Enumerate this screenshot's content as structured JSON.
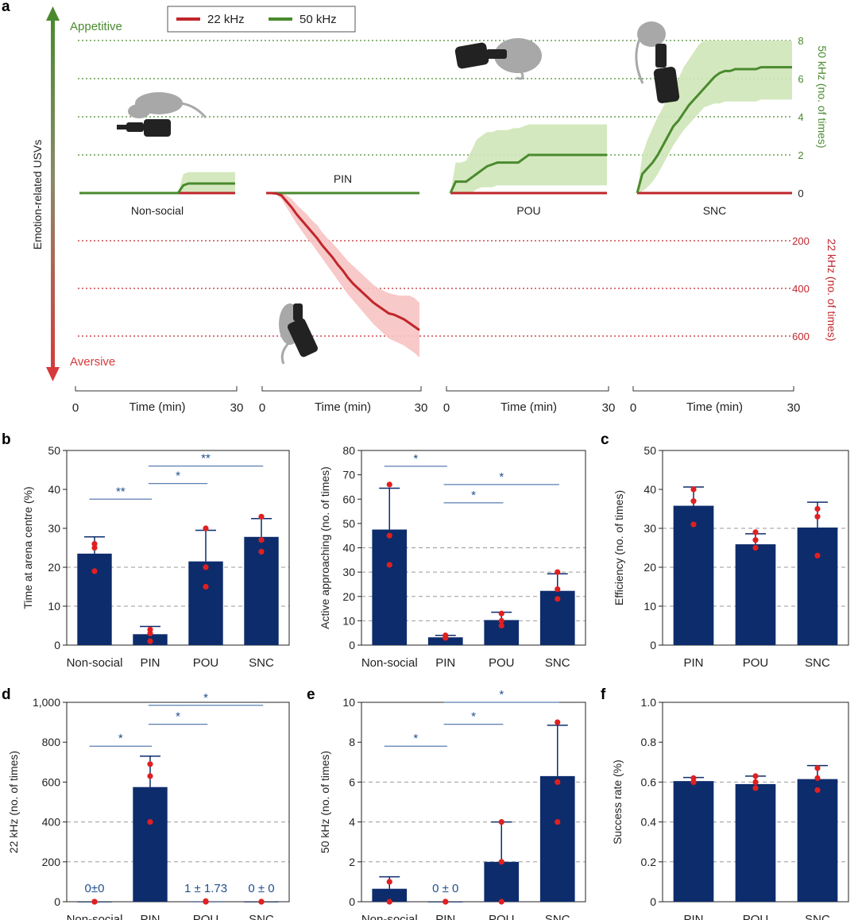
{
  "colors": {
    "navy": "#0d2c6c",
    "red": "#c0262b",
    "green": "#4a8a2e",
    "green_fill": "#cfe6b8",
    "red_fill": "#f7c3c3",
    "dot": "#e02020",
    "sig": "#5a7fb0",
    "sig_text": "#1f4f8f",
    "grid": "#999999"
  },
  "panel_letters": {
    "a": "a",
    "b": "b",
    "c": "c",
    "d": "d",
    "e": "e",
    "f": "f"
  },
  "chart_data": [
    {
      "id": "a",
      "type": "line",
      "legend": {
        "placement": "top-left",
        "items": [
          "22 kHz",
          "50 kHz"
        ]
      },
      "ylabel": "Emotion-related USVs",
      "top_label": "Appetitive",
      "bottom_label": "Aversive",
      "right_axis_50": {
        "label": "50 kHz (no. of times)",
        "ticks": [
          "8",
          "6",
          "4",
          "2",
          "0"
        ],
        "range": [
          0,
          8
        ]
      },
      "right_axis_22": {
        "label": "22 kHz (no. of times)",
        "ticks": [
          "200",
          "400",
          "600"
        ],
        "range": [
          0,
          600
        ]
      },
      "x_axis": {
        "label": "Time (min)",
        "start": "0",
        "end": "30",
        "range": [
          0,
          30
        ]
      },
      "conditions": [
        {
          "name": "Non-social",
          "label_position": "below",
          "series_22": {
            "x": [
              0,
              30
            ],
            "y": [
              0,
              0
            ]
          },
          "series_50": {
            "x": [
              0,
              19,
              20,
              21,
              30
            ],
            "y": [
              0,
              0,
              0.4,
              0.5,
              0.5
            ],
            "band_hi": [
              0,
              0,
              1.0,
              1.1,
              1.1
            ],
            "band_lo": [
              0,
              0,
              0,
              0,
              0
            ]
          }
        },
        {
          "name": "PIN",
          "label_position": "above",
          "series_22": {
            "x": [
              0,
              1,
              2,
              3,
              4,
              5,
              6,
              7,
              8,
              9,
              10,
              11,
              12,
              13,
              14,
              15,
              16,
              17,
              18,
              19,
              20,
              21,
              22,
              23,
              24,
              25,
              26,
              27,
              28,
              29,
              30
            ],
            "y": [
              0,
              0,
              2,
              10,
              35,
              60,
              90,
              115,
              140,
              165,
              190,
              220,
              245,
              270,
              300,
              325,
              355,
              380,
              400,
              420,
              440,
              460,
              475,
              490,
              505,
              510,
              520,
              530,
              545,
              560,
              575
            ],
            "band_hi": [
              0,
              0,
              5,
              25,
              60,
              95,
              130,
              160,
              190,
              215,
              245,
              275,
              305,
              335,
              365,
              395,
              425,
              450,
              475,
              500,
              525,
              550,
              570,
              590,
              610,
              620,
              630,
              640,
              655,
              670,
              690
            ],
            "band_lo": [
              0,
              0,
              0,
              0,
              10,
              25,
              50,
              70,
              90,
              115,
              135,
              165,
              190,
              210,
              235,
              260,
              285,
              305,
              325,
              345,
              365,
              385,
              400,
              410,
              420,
              425,
              430,
              430,
              430,
              440,
              460
            ]
          },
          "series_50": {
            "x": [
              0,
              30
            ],
            "y": [
              0,
              0
            ]
          }
        },
        {
          "name": "POU",
          "label_position": "below",
          "series_22": {
            "x": [
              0,
              30
            ],
            "y": [
              0,
              0
            ]
          },
          "series_50": {
            "x": [
              0,
              0.5,
              1,
              2,
              3,
              4,
              5,
              6,
              7,
              8,
              9,
              10,
              11,
              12,
              13,
              14,
              15,
              16,
              17,
              18,
              19,
              20,
              21,
              22,
              23,
              24,
              25,
              26,
              27,
              28,
              29,
              30
            ],
            "y": [
              0,
              0.3,
              0.6,
              0.6,
              0.6,
              0.8,
              1.0,
              1.2,
              1.4,
              1.5,
              1.6,
              1.6,
              1.6,
              1.6,
              1.6,
              1.8,
              2.0,
              2.0,
              2.0,
              2.0,
              2.0,
              2.0,
              2.0,
              2.0,
              2.0,
              2.0,
              2.0,
              2.0,
              2.0,
              2.0,
              2.0,
              2.0
            ],
            "band_hi": [
              0,
              0.8,
              1.6,
              1.6,
              1.7,
              2.2,
              2.8,
              3.0,
              3.2,
              3.2,
              3.3,
              3.3,
              3.3,
              3.4,
              3.4,
              3.5,
              3.6,
              3.6,
              3.6,
              3.6,
              3.6,
              3.6,
              3.6,
              3.6,
              3.6,
              3.6,
              3.6,
              3.6,
              3.6,
              3.6,
              3.6,
              3.6
            ],
            "band_lo": [
              0,
              0,
              0,
              0,
              0,
              0,
              0.2,
              0.3,
              0.3,
              0.3,
              0.4,
              0.4,
              0.4,
              0.4,
              0.4,
              0.4,
              0.4,
              0.4,
              0.4,
              0.4,
              0.4,
              0.4,
              0.4,
              0.4,
              0.4,
              0.4,
              0.4,
              0.4,
              0.4,
              0.4,
              0.4,
              0.4
            ]
          }
        },
        {
          "name": "SNC",
          "label_position": "below",
          "series_22": {
            "x": [
              0,
              30
            ],
            "y": [
              0,
              0
            ]
          },
          "series_50": {
            "x": [
              0,
              0.5,
              1,
              2,
              3,
              4,
              5,
              6,
              7,
              8,
              9,
              10,
              11,
              12,
              13,
              14,
              15,
              16,
              17,
              18,
              19,
              20,
              21,
              22,
              23,
              24,
              25,
              26,
              27,
              28,
              29,
              30
            ],
            "y": [
              0,
              0.5,
              1.0,
              1.3,
              1.6,
              2.0,
              2.5,
              3.0,
              3.5,
              3.8,
              4.2,
              4.6,
              4.9,
              5.2,
              5.5,
              5.8,
              6.1,
              6.3,
              6.4,
              6.4,
              6.5,
              6.5,
              6.5,
              6.5,
              6.5,
              6.6,
              6.6,
              6.6,
              6.6,
              6.6,
              6.6,
              6.6
            ],
            "band_hi": [
              0,
              1.0,
              2.0,
              2.8,
              3.4,
              4.0,
              4.5,
              5.0,
              5.5,
              6.0,
              6.6,
              7.0,
              7.4,
              7.8,
              8.0,
              8.0,
              8.0,
              8.0,
              8.0,
              8.0,
              8.0,
              8.0,
              8.0,
              8.0,
              8.0,
              8.0,
              8.0,
              8.0,
              8.0,
              8.0,
              8.0,
              8.0
            ],
            "band_lo": [
              0,
              0,
              0.1,
              0.3,
              0.6,
              1.0,
              1.5,
              2.0,
              2.5,
              2.9,
              3.3,
              3.6,
              3.9,
              4.2,
              4.5,
              4.6,
              4.7,
              4.7,
              4.8,
              4.8,
              4.8,
              4.8,
              4.8,
              4.8,
              4.8,
              4.9,
              4.9,
              4.9,
              4.9,
              4.9,
              4.9,
              4.9
            ]
          }
        }
      ]
    },
    {
      "id": "b1",
      "type": "bar",
      "categories": [
        "Non-social",
        "PIN",
        "POU",
        "SNC"
      ],
      "values": [
        23.5,
        2.8,
        21.5,
        27.8
      ],
      "errors": [
        4.3,
        2.0,
        8.0,
        4.7
      ],
      "points": [
        [
          26,
          25,
          19
        ],
        [
          4,
          3,
          1
        ],
        [
          30,
          20,
          15
        ],
        [
          33,
          27,
          24
        ]
      ],
      "ylabel": "Time at arena centre (%)",
      "ylim": [
        0,
        50
      ],
      "yticks": [
        0,
        10,
        20,
        30,
        40,
        50
      ],
      "grid_dashed": [
        10,
        20
      ],
      "significance": [
        {
          "from": 0,
          "to": 1,
          "y": 37.5,
          "label": "**"
        },
        {
          "from": 1,
          "to": 2,
          "y": 41.5,
          "label": "*"
        },
        {
          "from": 1,
          "to": 3,
          "y": 46,
          "label": "**"
        }
      ]
    },
    {
      "id": "b2",
      "type": "bar",
      "categories": [
        "Non-social",
        "PIN",
        "POU",
        "SNC"
      ],
      "values": [
        47.5,
        3.2,
        10.3,
        22.3
      ],
      "errors": [
        17,
        0.8,
        3.2,
        7
      ],
      "points": [
        [
          66,
          45,
          33
        ],
        [
          4,
          3,
          3
        ],
        [
          13,
          10,
          8
        ],
        [
          30,
          23,
          19
        ]
      ],
      "ylabel": "Active approaching (no. of times)",
      "ylim": [
        0,
        80
      ],
      "yticks": [
        0,
        10,
        20,
        30,
        40,
        50,
        60,
        70,
        80
      ],
      "grid_dashed": [
        10,
        20,
        30,
        40
      ],
      "significance": [
        {
          "from": 0,
          "to": 1,
          "y": 73.5,
          "label": "*"
        },
        {
          "from": 1,
          "to": 2,
          "y": 58.5,
          "label": "*"
        },
        {
          "from": 1,
          "to": 3,
          "y": 66,
          "label": "*"
        }
      ]
    },
    {
      "id": "c",
      "type": "bar",
      "categories": [
        "PIN",
        "POU",
        "SNC"
      ],
      "values": [
        35.8,
        25.9,
        30.2
      ],
      "errors": [
        4.8,
        2.7,
        6.5
      ],
      "points": [
        [
          40,
          37,
          31
        ],
        [
          29,
          27,
          25
        ],
        [
          35,
          33,
          23
        ]
      ],
      "ylabel": "Efficiency (no. of times)",
      "ylim": [
        0,
        50
      ],
      "yticks": [
        0,
        10,
        20,
        30,
        40,
        50
      ],
      "grid_dashed": [
        10,
        20,
        30
      ],
      "significance": []
    },
    {
      "id": "d",
      "type": "bar",
      "categories": [
        "Non-social",
        "PIN",
        "POU",
        "SNC"
      ],
      "values": [
        0,
        575,
        1,
        0
      ],
      "errors": [
        0,
        155,
        0,
        0
      ],
      "points": [
        [
          0,
          0,
          0
        ],
        [
          690,
          630,
          400
        ],
        [
          0,
          0,
          3
        ],
        [
          0,
          0,
          0
        ]
      ],
      "value_labels": [
        "0±0",
        "",
        "1 ± 1.73",
        "0 ± 0"
      ],
      "ylabel": "22 kHz (no. of times)",
      "ylim": [
        0,
        1000
      ],
      "yticks": [
        0,
        200,
        400,
        600,
        800,
        1000
      ],
      "ytick_labels": [
        "0",
        "200",
        "400",
        "600",
        "800",
        "1,000"
      ],
      "grid_dashed": [
        200,
        400
      ],
      "significance": [
        {
          "from": 0,
          "to": 1,
          "y": 780,
          "label": "*"
        },
        {
          "from": 1,
          "to": 2,
          "y": 890,
          "label": "*"
        },
        {
          "from": 1,
          "to": 3,
          "y": 985,
          "label": "*"
        }
      ]
    },
    {
      "id": "e",
      "type": "bar",
      "categories": [
        "Non-social",
        "PIN",
        "POU",
        "SNC"
      ],
      "values": [
        0.65,
        0,
        2,
        6.3
      ],
      "errors": [
        0.6,
        0,
        2,
        2.55
      ],
      "points": [
        [
          1,
          0,
          0
        ],
        [
          0,
          0,
          0
        ],
        [
          4,
          2,
          0
        ],
        [
          9,
          6,
          4
        ]
      ],
      "value_labels": [
        "",
        "0 ± 0",
        "",
        ""
      ],
      "ylabel": "50 kHz (no. of times)",
      "ylim": [
        0,
        10
      ],
      "yticks": [
        0,
        2,
        4,
        6,
        8,
        10
      ],
      "grid_dashed": [
        2,
        4,
        6
      ],
      "significance": [
        {
          "from": 0,
          "to": 1,
          "y": 7.8,
          "label": "*"
        },
        {
          "from": 1,
          "to": 2,
          "y": 8.9,
          "label": "*"
        },
        {
          "from": 1,
          "to": 3,
          "y": 10.0,
          "label": "*"
        }
      ]
    },
    {
      "id": "f",
      "type": "bar",
      "categories": [
        "PIN",
        "POU",
        "SNC"
      ],
      "values": [
        0.605,
        0.59,
        0.615
      ],
      "errors": [
        0.018,
        0.04,
        0.068
      ],
      "points": [
        [
          0.62,
          0.6,
          0.6
        ],
        [
          0.63,
          0.6,
          0.57
        ],
        [
          0.67,
          0.62,
          0.56
        ]
      ],
      "ylabel": "Success rate (%)",
      "ylim": [
        0,
        1.0
      ],
      "yticks": [
        0,
        0.2,
        0.4,
        0.6,
        0.8,
        1.0
      ],
      "ytick_labels": [
        "0",
        "0.2",
        "0.4",
        "0.6",
        "0.8",
        "1.0"
      ],
      "grid_dashed": [
        0.2,
        0.4,
        0.6
      ],
      "significance": []
    }
  ]
}
